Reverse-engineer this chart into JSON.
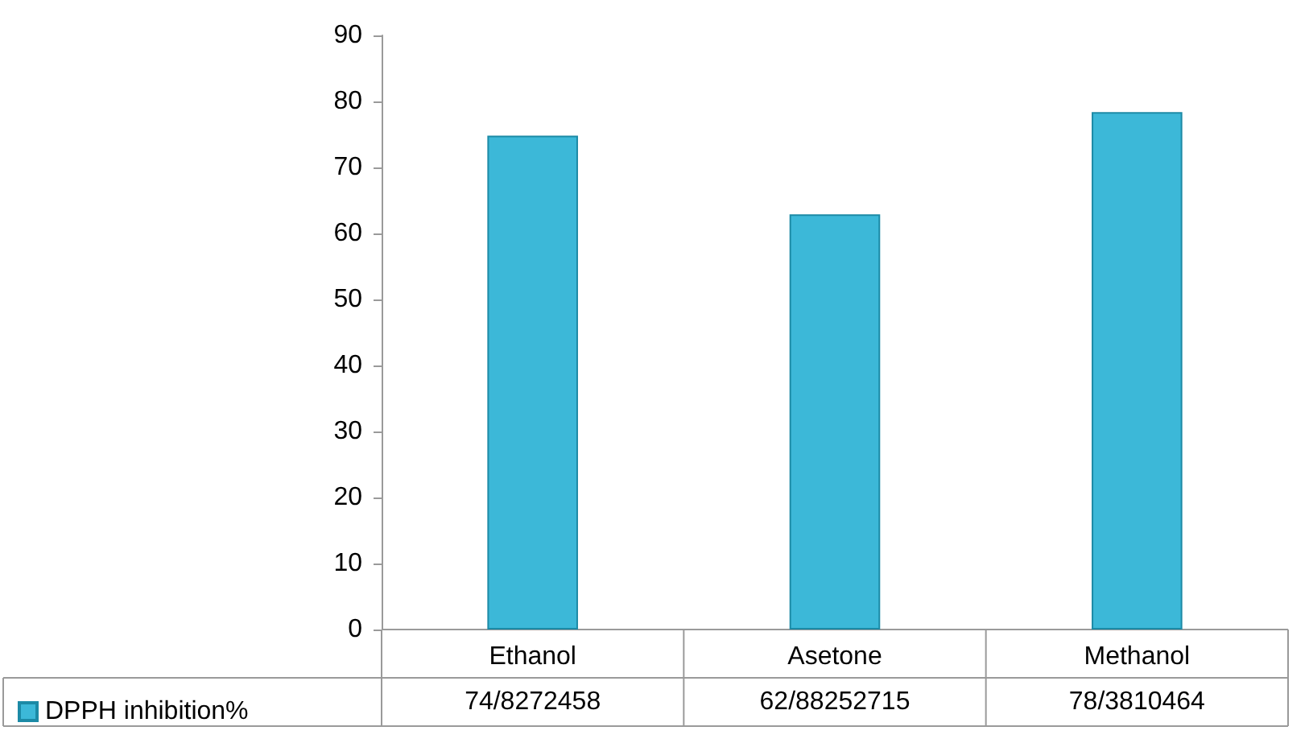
{
  "chart_data": {
    "type": "bar",
    "categories": [
      "Ethanol",
      "Asetone",
      "Methanol"
    ],
    "series": [
      {
        "name": "DPPH inhibition%",
        "color": "#3cb8d8",
        "values": [
          74.8272458,
          62.88252715,
          78.3810464
        ],
        "value_labels": [
          "74/8272458",
          "62/88252715",
          "78/3810464"
        ]
      }
    ],
    "ylim": [
      0,
      90
    ],
    "yticks": [
      0,
      10,
      20,
      30,
      40,
      50,
      60,
      70,
      80,
      90
    ],
    "legend": "bottom left"
  }
}
